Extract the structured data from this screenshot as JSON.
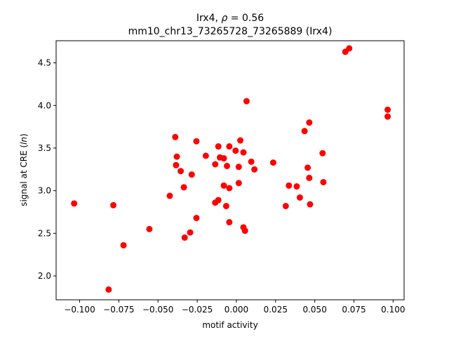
{
  "chart_data": {
    "type": "scatter",
    "title_line1_prefix": "Irx4, ",
    "title_line1_rho_symbol": "ρ",
    "title_line1_rho_value": " = 0.56",
    "title_line2": "mm10_chr13_73265728_73265889 (Irx4)",
    "xlabel": "motif activity",
    "ylabel_prefix": "signal at CRE (",
    "ylabel_italic": "ln",
    "ylabel_suffix": ")",
    "xlim": [
      -0.115,
      0.107
    ],
    "ylim": [
      1.72,
      4.76
    ],
    "xticks": [
      -0.1,
      -0.075,
      -0.05,
      -0.025,
      0.0,
      0.025,
      0.05,
      0.075,
      0.1
    ],
    "xtick_labels": [
      "−0.100",
      "−0.075",
      "−0.050",
      "−0.025",
      "0.000",
      "0.025",
      "0.050",
      "0.075",
      "0.100"
    ],
    "yticks": [
      2.0,
      2.5,
      3.0,
      3.5,
      4.0,
      4.5
    ],
    "ytick_labels": [
      "2.0",
      "2.5",
      "3.0",
      "3.5",
      "4.0",
      "4.5"
    ],
    "grid": false,
    "marker_color": "#ff0000",
    "points": [
      {
        "x": -0.1035,
        "y": 2.85
      },
      {
        "x": -0.0815,
        "y": 1.84
      },
      {
        "x": -0.0785,
        "y": 2.83
      },
      {
        "x": -0.072,
        "y": 2.36
      },
      {
        "x": -0.0555,
        "y": 2.55
      },
      {
        "x": -0.0425,
        "y": 2.94
      },
      {
        "x": -0.039,
        "y": 3.63
      },
      {
        "x": -0.0385,
        "y": 3.3
      },
      {
        "x": -0.038,
        "y": 3.4
      },
      {
        "x": -0.0355,
        "y": 3.23
      },
      {
        "x": -0.0335,
        "y": 3.04
      },
      {
        "x": -0.033,
        "y": 2.45
      },
      {
        "x": -0.0295,
        "y": 2.51
      },
      {
        "x": -0.0285,
        "y": 3.19
      },
      {
        "x": -0.0255,
        "y": 3.58
      },
      {
        "x": -0.0255,
        "y": 2.68
      },
      {
        "x": -0.0195,
        "y": 3.41
      },
      {
        "x": -0.0135,
        "y": 3.31
      },
      {
        "x": -0.0135,
        "y": 2.86
      },
      {
        "x": -0.0115,
        "y": 3.52
      },
      {
        "x": -0.0115,
        "y": 2.89
      },
      {
        "x": -0.0105,
        "y": 3.39
      },
      {
        "x": -0.008,
        "y": 3.38
      },
      {
        "x": -0.008,
        "y": 3.06
      },
      {
        "x": -0.0065,
        "y": 2.82
      },
      {
        "x": -0.006,
        "y": 3.29
      },
      {
        "x": -0.0045,
        "y": 3.52
      },
      {
        "x": -0.0045,
        "y": 3.03
      },
      {
        "x": -0.0045,
        "y": 2.63
      },
      {
        "x": -0.0005,
        "y": 3.47
      },
      {
        "x": 0.0015,
        "y": 3.28
      },
      {
        "x": 0.0015,
        "y": 3.09
      },
      {
        "x": 0.0025,
        "y": 3.59
      },
      {
        "x": 0.0045,
        "y": 3.45
      },
      {
        "x": 0.0045,
        "y": 2.57
      },
      {
        "x": 0.0055,
        "y": 2.53
      },
      {
        "x": 0.0065,
        "y": 4.05
      },
      {
        "x": 0.0095,
        "y": 3.34
      },
      {
        "x": 0.0115,
        "y": 3.25
      },
      {
        "x": 0.0235,
        "y": 3.33
      },
      {
        "x": 0.0315,
        "y": 2.82
      },
      {
        "x": 0.0335,
        "y": 3.06
      },
      {
        "x": 0.0385,
        "y": 3.05
      },
      {
        "x": 0.0405,
        "y": 2.92
      },
      {
        "x": 0.0435,
        "y": 3.7
      },
      {
        "x": 0.0455,
        "y": 3.27
      },
      {
        "x": 0.0465,
        "y": 3.8
      },
      {
        "x": 0.0465,
        "y": 3.15
      },
      {
        "x": 0.047,
        "y": 2.84
      },
      {
        "x": 0.055,
        "y": 3.44
      },
      {
        "x": 0.0555,
        "y": 3.1
      },
      {
        "x": 0.0695,
        "y": 4.63
      },
      {
        "x": 0.072,
        "y": 4.67
      },
      {
        "x": 0.0965,
        "y": 3.95
      },
      {
        "x": 0.0965,
        "y": 3.87
      }
    ]
  }
}
